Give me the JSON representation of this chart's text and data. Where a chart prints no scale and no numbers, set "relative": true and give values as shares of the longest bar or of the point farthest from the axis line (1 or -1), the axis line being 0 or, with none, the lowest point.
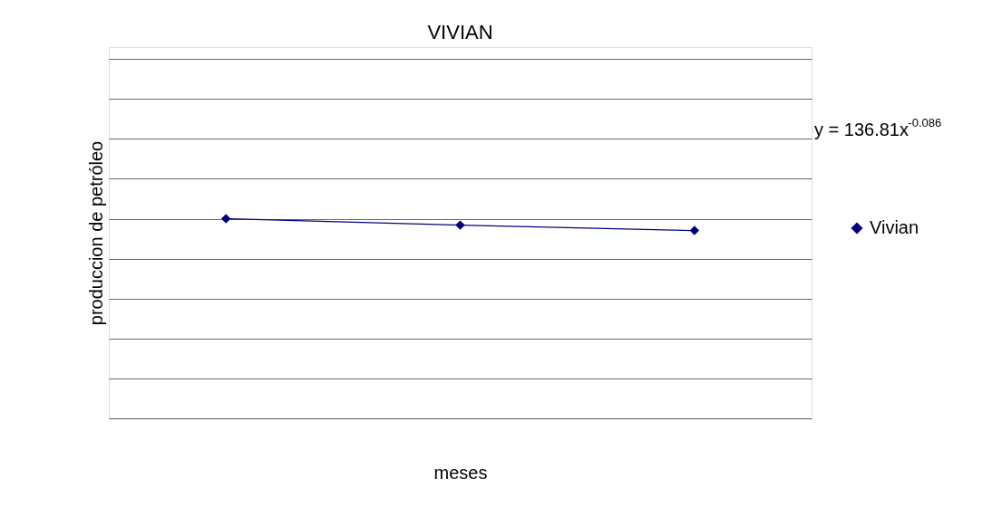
{
  "chart_data": {
    "type": "line",
    "title": "VIVIAN",
    "xlabel": "meses",
    "ylabel": "produccion de petróleo",
    "categories": [
      null,
      null,
      null
    ],
    "series": [
      {
        "name": "Vivian",
        "color": "#000080",
        "values": [
          1,
          0.968,
          0.941
        ]
      }
    ],
    "relative": true,
    "marker": "diamond",
    "legend": "right",
    "grid": "y",
    "annotations": [
      "y = 136.81x$^{-0.086}$"
    ]
  }
}
